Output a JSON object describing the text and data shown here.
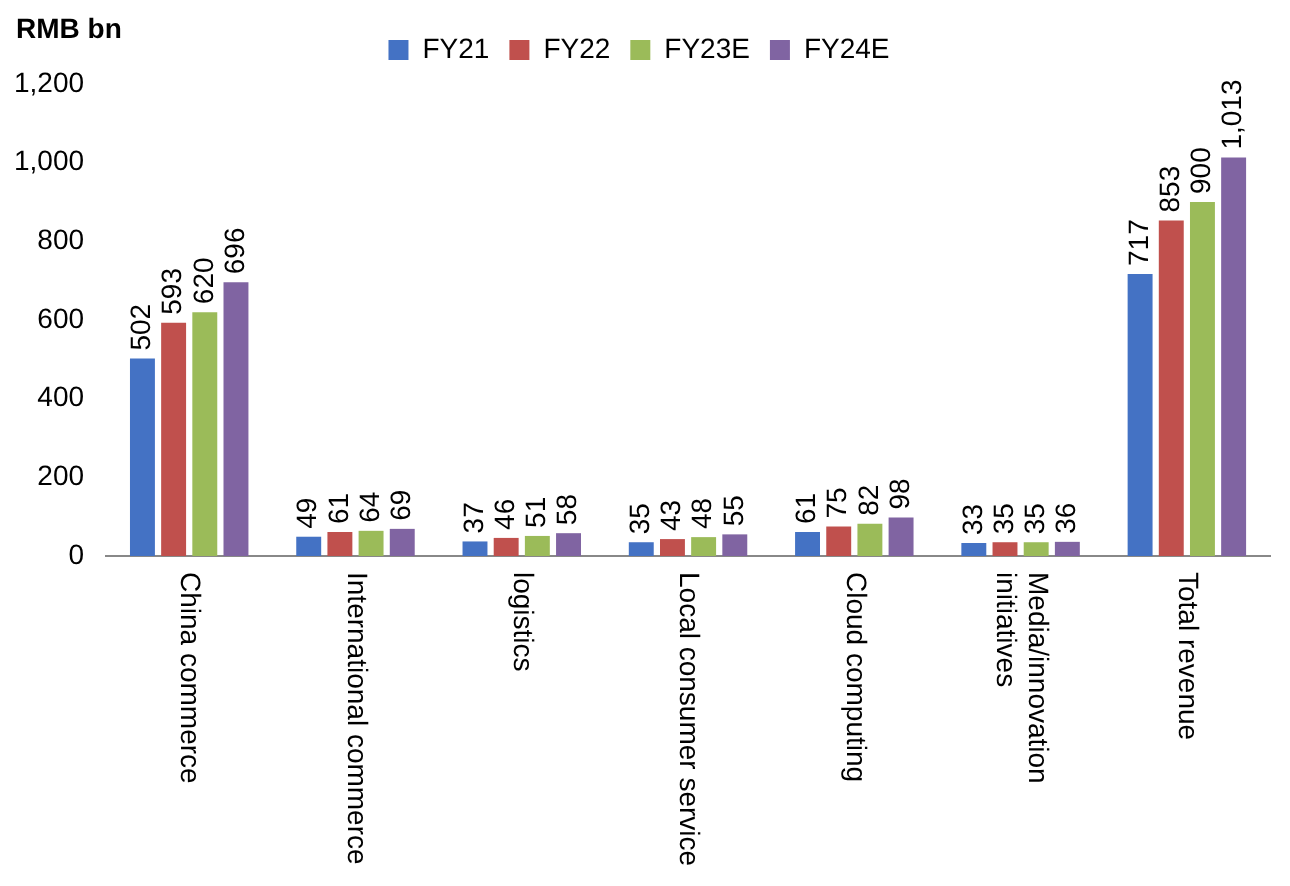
{
  "chart_data": {
    "type": "bar",
    "ylabel": "RMB bn",
    "categories": [
      "China commerce",
      "International commerce",
      "logistics",
      "Local consumer service",
      "Cloud computing",
      "Media/innovation initiatives",
      "Total revenue"
    ],
    "series": [
      {
        "name": "FY21",
        "color": "#4472c4",
        "values": [
          502,
          49,
          37,
          35,
          61,
          33,
          717
        ],
        "value_labels": [
          "502",
          "49",
          "37",
          "35",
          "61",
          "33",
          "717"
        ]
      },
      {
        "name": "FY22",
        "color": "#c0504d",
        "values": [
          593,
          61,
          46,
          43,
          75,
          35,
          853
        ],
        "value_labels": [
          "593",
          "61",
          "46",
          "43",
          "75",
          "35",
          "853"
        ]
      },
      {
        "name": "FY23E",
        "color": "#9bbb59",
        "values": [
          620,
          64,
          51,
          48,
          82,
          35,
          900
        ],
        "value_labels": [
          "620",
          "64",
          "51",
          "48",
          "82",
          "35",
          "900"
        ]
      },
      {
        "name": "FY24E",
        "color": "#8064a2",
        "values": [
          696,
          69,
          58,
          55,
          98,
          36,
          1013
        ],
        "value_labels": [
          "696",
          "69",
          "58",
          "55",
          "98",
          "36",
          "1,013"
        ]
      }
    ],
    "ylim": [
      0,
      1200
    ],
    "yticks": [
      0,
      200,
      400,
      600,
      800,
      {
        "value": 1000,
        "label": "1,000"
      },
      {
        "value": 1200,
        "label": "1,200"
      }
    ],
    "grid": false,
    "legend": "top"
  }
}
